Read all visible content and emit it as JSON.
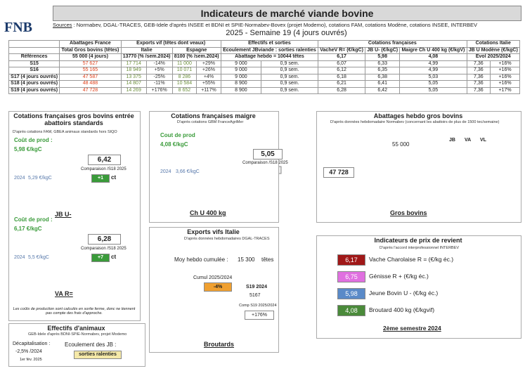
{
  "header": {
    "logo": "FNB",
    "title": "Indicateurs de marché viande bovine",
    "sources_label": "Sources",
    "sources": " : Normabev, DGAL-TRACES, GEB-Idele d'après INSEE et BDNI et SPIE-Normabev-Bovex (projet Modemo), cotations FAM, cotations Modène, cotations INSEE, INTERBEV",
    "week": "2025 - Semaine 19 (4 jours ouvrés)"
  },
  "table": {
    "groups": [
      "Abattages France",
      "Exports vif (têtes dont veaux)",
      "Effectifs et sorties",
      "Cotations françaises",
      "Cotations Italie"
    ],
    "columns": [
      "Total Gros bovins (têtes)",
      "Italie",
      "Espagne",
      "Ecoulement JBviande : sorties ralenties",
      "VacheV R= (€/kgC)",
      "JB U- (€/kgC)",
      "Maigre Ch U 400 kg (€/kgV)",
      "JB U Modène (€/kgC)"
    ],
    "reference": [
      "Références",
      "55 000 (4 jours)",
      "13770 (% /sem.2024)",
      "8100 (% /sem.2024)",
      "Abattage hebdo = 10044 têtes",
      "6,17",
      "5,98",
      "4,08",
      "Evol 2025/2024"
    ],
    "rows": [
      [
        "S15",
        "57 627",
        "17 714",
        "-14%",
        "11 000",
        "+29%",
        "9 000",
        "0,9 sem.",
        "6,07",
        "6,33",
        "4,99",
        "7,36",
        "+16%"
      ],
      [
        "S16",
        "55 165",
        "18 949",
        "+5%",
        "10 071",
        "+26%",
        "9 000",
        "0,9 sem.",
        "6,12",
        "6,35",
        "4,99",
        "7,36",
        "+16%"
      ],
      [
        "S17 (4 jours ouvrés)",
        "47 587",
        "13 375",
        "-25%",
        "8 286",
        "+4%",
        "9 000",
        "0,9 sem.",
        "6,18",
        "6,38",
        "5,03",
        "7,36",
        "+16%"
      ],
      [
        "S18 (4 jours ouvrés)",
        "48 488",
        "14 807",
        "-11%",
        "10 584",
        "+55%",
        "8 900",
        "0,9 sem.",
        "6,21",
        "6,41",
        "5,05",
        "7,36",
        "+16%"
      ],
      [
        "S19 (4 jours ouvrés)",
        "47 728",
        "14 269",
        "+176%",
        "8 652",
        "+117%",
        "8 900",
        "0,9 sem.",
        "6,28",
        "6,42",
        "5,05",
        "7,36",
        "+17%"
      ]
    ]
  },
  "panel_gb": {
    "title": "Cotations françaises gros bovins entrée abattoirs standards",
    "source": "D'après cotations FAM, GBEA animaux standards hors SIQO",
    "jb": {
      "cost_label": "Coût de prod :",
      "cost": "5,98 €/kgC",
      "year": "2024",
      "prev": "5,29 €/kgC",
      "value": "6,42",
      "compare": "Comparaison /S18 2025",
      "delta": "+1",
      "unit": "ct",
      "name": "JB U-"
    },
    "va": {
      "cost_label": "Coût de prod :",
      "cost": "6,17 €/kgC",
      "year": "2024",
      "prev": "5,5 €/kgC",
      "value": "6,28",
      "compare": "Comparaison /S18 2025",
      "delta": "+7",
      "unit": "ct",
      "name": "VA R="
    },
    "note": "Les coûts de production sont calculés en sortie ferme, donc ne tiennent pas compte des frais d'approche."
  },
  "panel_maigre": {
    "title": "Cotations françaises maigre",
    "source": "D'après cotations GBM FranceAgriMer",
    "cost_label": "Cout de prod",
    "cost": "4,08 €/kgC",
    "year": "2024",
    "prev": "3,66 €/kgC",
    "value": "5,05",
    "compare": "Comparaison /S18 2025",
    "name": "Ch U 400 kg"
  },
  "panel_abattages": {
    "title": "Abattages hebdo gros bovins",
    "source": "D'après données hebdomadaire Normabev (concernant les abattoirs de plus de 1500 tec/semaine)",
    "reference": "55 000",
    "legend": [
      "JB",
      "VA",
      "VL"
    ],
    "value": "47 728",
    "name": "Gros bovins"
  },
  "panel_exports": {
    "title": "Exports vifs  Italie",
    "source": "D'après données hebdomadaires DGAL-TRACES",
    "avg_label": "Moy hebdo cumulée :",
    "avg": "15 300",
    "avg_unit": "têtes",
    "cumul_label": "Cumul 2025/2024",
    "cumul": "-4%",
    "prev_label": "S19 2024",
    "prev": "5167",
    "comp_label": "Comp S19 2025/2024",
    "comp": "+176%",
    "name": "Broutards"
  },
  "panel_revient": {
    "title": "Indicateurs de prix de revient",
    "source": "D'après l'accord interprofessionnel INTERBEV",
    "items": [
      {
        "value": "6,17",
        "label": "Vache Charolaise R = (€/kg éc.)"
      },
      {
        "value": "6,75",
        "label": "Génisse R + (€/kg éc.)"
      },
      {
        "value": "5,98",
        "label": "Jeune Bovin U - (€/kg éc.)"
      },
      {
        "value": "4,08",
        "label": "Broutard 400 kg (€/kgvif)"
      }
    ],
    "period": "2ème semestre 2024"
  },
  "panel_effectifs": {
    "title": "Effectifs d'animaux",
    "source": "GEB-Idele d'après BDNI-SPIE-Normabev, projet Modemo",
    "decap_label": "Décapitalisation :",
    "decap": "-2,5% /2024",
    "date": "1er fév. 2025",
    "ecoul_label": "Ecoulement des JB :",
    "ecoul": "sorties ralenties"
  }
}
